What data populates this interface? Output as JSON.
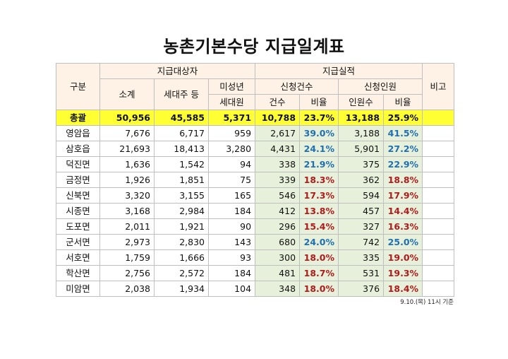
{
  "title": "농촌기본수당 지급일계표",
  "header": {
    "category": "구분",
    "target_group": "지급대상자",
    "performance_group": "지급실적",
    "subtotal": "소계",
    "household_head": "세대주 등",
    "minor_line1": "미성년",
    "minor_line2": "세대원",
    "applications_group": "신청건수",
    "applicants_group": "신청인원",
    "count": "건수",
    "ratio": "비율",
    "persons": "인원수",
    "ratio2": "비율",
    "remarks": "비고"
  },
  "colors": {
    "high_ratio": "#1f6fb2",
    "low_ratio": "#b01c1c",
    "total_row": "#ffff33",
    "header_bg": "#fdf2e5",
    "performance_bg": "#e6f0da"
  },
  "total": {
    "area": "총괄",
    "subtotal": "50,956",
    "household": "45,585",
    "minor": "5,371",
    "app_count": "10,788",
    "app_ratio": "23.7%",
    "persons": "13,188",
    "person_ratio": "25.9%",
    "remarks": ""
  },
  "rows": [
    {
      "area": "영암읍",
      "subtotal": "7,676",
      "household": "6,717",
      "minor": "959",
      "app_count": "2,617",
      "app_ratio": "39.0%",
      "persons": "3,188",
      "person_ratio": "41.5%",
      "tone": "high",
      "remarks": ""
    },
    {
      "area": "삼호읍",
      "subtotal": "21,693",
      "household": "18,413",
      "minor": "3,280",
      "app_count": "4,431",
      "app_ratio": "24.1%",
      "persons": "5,901",
      "person_ratio": "27.2%",
      "tone": "high",
      "remarks": ""
    },
    {
      "area": "덕진면",
      "subtotal": "1,636",
      "household": "1,542",
      "minor": "94",
      "app_count": "338",
      "app_ratio": "21.9%",
      "persons": "375",
      "person_ratio": "22.9%",
      "tone": "high",
      "remarks": ""
    },
    {
      "area": "금정면",
      "subtotal": "1,926",
      "household": "1,851",
      "minor": "75",
      "app_count": "339",
      "app_ratio": "18.3%",
      "persons": "362",
      "person_ratio": "18.8%",
      "tone": "low",
      "remarks": ""
    },
    {
      "area": "신북면",
      "subtotal": "3,320",
      "household": "3,155",
      "minor": "165",
      "app_count": "546",
      "app_ratio": "17.3%",
      "persons": "594",
      "person_ratio": "17.9%",
      "tone": "low",
      "remarks": ""
    },
    {
      "area": "시종면",
      "subtotal": "3,168",
      "household": "2,984",
      "minor": "184",
      "app_count": "412",
      "app_ratio": "13.8%",
      "persons": "457",
      "person_ratio": "14.4%",
      "tone": "low",
      "remarks": ""
    },
    {
      "area": "도포면",
      "subtotal": "2,011",
      "household": "1,921",
      "minor": "90",
      "app_count": "296",
      "app_ratio": "15.4%",
      "persons": "327",
      "person_ratio": "16.3%",
      "tone": "low",
      "remarks": ""
    },
    {
      "area": "군서면",
      "subtotal": "2,973",
      "household": "2,830",
      "minor": "143",
      "app_count": "680",
      "app_ratio": "24.0%",
      "persons": "742",
      "person_ratio": "25.0%",
      "tone": "high",
      "remarks": ""
    },
    {
      "area": "서호면",
      "subtotal": "1,759",
      "household": "1,666",
      "minor": "93",
      "app_count": "300",
      "app_ratio": "18.0%",
      "persons": "335",
      "person_ratio": "19.0%",
      "tone": "low",
      "remarks": ""
    },
    {
      "area": "학산면",
      "subtotal": "2,756",
      "household": "2,572",
      "minor": "184",
      "app_count": "481",
      "app_ratio": "18.7%",
      "persons": "531",
      "person_ratio": "19.3%",
      "tone": "low",
      "remarks": ""
    },
    {
      "area": "미암면",
      "subtotal": "2,038",
      "household": "1,934",
      "minor": "104",
      "app_count": "348",
      "app_ratio": "18.0%",
      "persons": "376",
      "person_ratio": "18.4%",
      "tone": "low",
      "remarks": ""
    }
  ],
  "footnote": "9.10.(목) 11시 기준"
}
